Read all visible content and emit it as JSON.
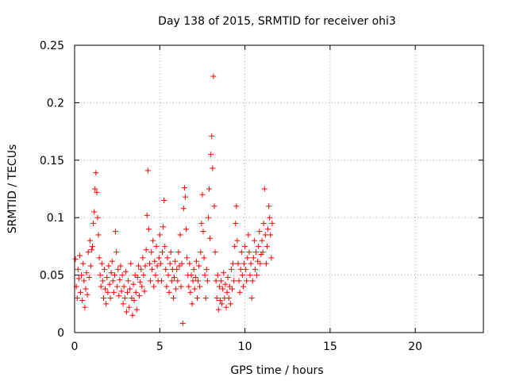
{
  "chart_data": {
    "type": "scatter",
    "title": "Day 138 of 2015, SRMTID for receiver ohi3",
    "xlabel": "GPS time / hours",
    "ylabel": "SRMTID / TECUs",
    "xlim": [
      0,
      24
    ],
    "ylim": [
      0,
      0.25
    ],
    "xticks": [
      0,
      5,
      10,
      15,
      20
    ],
    "xtick_labels": [
      "0",
      "5",
      "10",
      "15",
      "20"
    ],
    "yticks": [
      0,
      0.05,
      0.1,
      0.15,
      0.2,
      0.25
    ],
    "ytick_labels": [
      "0",
      "0.05",
      "0.1",
      "0.15",
      "0.2",
      "0.25"
    ],
    "grid": true,
    "marker": "plus",
    "color": "#ff0000",
    "series": [
      {
        "name": "SRMTID",
        "points": [
          [
            0.05,
            0.064
          ],
          [
            0.1,
            0.04
          ],
          [
            0.15,
            0.03
          ],
          [
            0.2,
            0.055
          ],
          [
            0.25,
            0.047
          ],
          [
            0.3,
            0.067
          ],
          [
            0.35,
            0.035
          ],
          [
            0.4,
            0.05
          ],
          [
            0.45,
            0.028
          ],
          [
            0.5,
            0.06
          ],
          [
            0.55,
            0.045
          ],
          [
            0.6,
            0.022
          ],
          [
            0.65,
            0.038
          ],
          [
            0.7,
            0.052
          ],
          [
            0.75,
            0.033
          ],
          [
            0.8,
            0.07
          ],
          [
            0.85,
            0.048
          ],
          [
            0.9,
            0.08
          ],
          [
            0.95,
            0.058
          ],
          [
            1.0,
            0.072
          ],
          [
            1.05,
            0.075
          ],
          [
            1.1,
            0.095
          ],
          [
            1.15,
            0.105
          ],
          [
            1.2,
            0.125
          ],
          [
            1.25,
            0.139
          ],
          [
            1.3,
            0.122
          ],
          [
            1.35,
            0.1
          ],
          [
            1.4,
            0.085
          ],
          [
            1.45,
            0.065
          ],
          [
            1.5,
            0.05
          ],
          [
            1.55,
            0.04
          ],
          [
            1.6,
            0.06
          ],
          [
            1.65,
            0.045
          ],
          [
            1.7,
            0.03
          ],
          [
            1.75,
            0.055
          ],
          [
            1.8,
            0.038
          ],
          [
            1.85,
            0.025
          ],
          [
            1.9,
            0.048
          ],
          [
            1.95,
            0.035
          ],
          [
            2.0,
            0.058
          ],
          [
            2.05,
            0.042
          ],
          [
            2.1,
            0.03
          ],
          [
            2.15,
            0.052
          ],
          [
            2.2,
            0.062
          ],
          [
            2.25,
            0.045
          ],
          [
            2.3,
            0.035
          ],
          [
            2.35,
            0.05
          ],
          [
            2.4,
            0.088
          ],
          [
            2.45,
            0.07
          ],
          [
            2.5,
            0.04
          ],
          [
            2.55,
            0.055
          ],
          [
            2.6,
            0.032
          ],
          [
            2.65,
            0.046
          ],
          [
            2.7,
            0.058
          ],
          [
            2.75,
            0.036
          ],
          [
            2.8,
            0.05
          ],
          [
            2.85,
            0.025
          ],
          [
            2.9,
            0.04
          ],
          [
            2.95,
            0.03
          ],
          [
            3.0,
            0.053
          ],
          [
            3.05,
            0.018
          ],
          [
            3.1,
            0.035
          ],
          [
            3.15,
            0.045
          ],
          [
            3.2,
            0.022
          ],
          [
            3.25,
            0.038
          ],
          [
            3.3,
            0.06
          ],
          [
            3.35,
            0.03
          ],
          [
            3.4,
            0.015
          ],
          [
            3.45,
            0.042
          ],
          [
            3.5,
            0.028
          ],
          [
            3.55,
            0.05
          ],
          [
            3.6,
            0.035
          ],
          [
            3.65,
            0.02
          ],
          [
            3.7,
            0.048
          ],
          [
            3.75,
            0.058
          ],
          [
            3.8,
            0.032
          ],
          [
            3.85,
            0.044
          ],
          [
            3.9,
            0.055
          ],
          [
            3.95,
            0.04
          ],
          [
            4.0,
            0.065
          ],
          [
            4.05,
            0.05
          ],
          [
            4.1,
            0.036
          ],
          [
            4.15,
            0.058
          ],
          [
            4.2,
            0.072
          ],
          [
            4.25,
            0.102
          ],
          [
            4.3,
            0.141
          ],
          [
            4.35,
            0.09
          ],
          [
            4.4,
            0.06
          ],
          [
            4.45,
            0.045
          ],
          [
            4.5,
            0.07
          ],
          [
            4.55,
            0.055
          ],
          [
            4.6,
            0.08
          ],
          [
            4.65,
            0.04
          ],
          [
            4.7,
            0.062
          ],
          [
            4.75,
            0.05
          ],
          [
            4.8,
            0.075
          ],
          [
            4.85,
            0.058
          ],
          [
            4.9,
            0.045
          ],
          [
            4.95,
            0.065
          ],
          [
            5.0,
            0.085
          ],
          [
            5.05,
            0.06
          ],
          [
            5.1,
            0.045
          ],
          [
            5.15,
            0.07
          ],
          [
            5.2,
            0.092
          ],
          [
            5.25,
            0.115
          ],
          [
            5.3,
            0.075
          ],
          [
            5.35,
            0.055
          ],
          [
            5.4,
            0.04
          ],
          [
            5.45,
            0.065
          ],
          [
            5.5,
            0.05
          ],
          [
            5.55,
            0.035
          ],
          [
            5.6,
            0.06
          ],
          [
            5.65,
            0.07
          ],
          [
            5.7,
            0.045
          ],
          [
            5.75,
            0.055
          ],
          [
            5.8,
            0.03
          ],
          [
            5.85,
            0.048
          ],
          [
            5.9,
            0.062
          ],
          [
            5.95,
            0.038
          ],
          [
            6.0,
            0.055
          ],
          [
            6.05,
            0.045
          ],
          [
            6.1,
            0.07
          ],
          [
            6.15,
            0.058
          ],
          [
            6.2,
            0.085
          ],
          [
            6.25,
            0.04
          ],
          [
            6.3,
            0.06
          ],
          [
            6.35,
            0.008
          ],
          [
            6.4,
            0.108
          ],
          [
            6.45,
            0.126
          ],
          [
            6.5,
            0.118
          ],
          [
            6.55,
            0.09
          ],
          [
            6.6,
            0.065
          ],
          [
            6.65,
            0.05
          ],
          [
            6.7,
            0.04
          ],
          [
            6.75,
            0.06
          ],
          [
            6.8,
            0.035
          ],
          [
            6.85,
            0.05
          ],
          [
            6.9,
            0.025
          ],
          [
            6.95,
            0.045
          ],
          [
            7.0,
            0.055
          ],
          [
            7.05,
            0.038
          ],
          [
            7.1,
            0.048
          ],
          [
            7.15,
            0.062
          ],
          [
            7.2,
            0.03
          ],
          [
            7.25,
            0.045
          ],
          [
            7.3,
            0.058
          ],
          [
            7.35,
            0.04
          ],
          [
            7.4,
            0.07
          ],
          [
            7.45,
            0.095
          ],
          [
            7.5,
            0.12
          ],
          [
            7.55,
            0.088
          ],
          [
            7.6,
            0.065
          ],
          [
            7.65,
            0.05
          ],
          [
            7.7,
            0.03
          ],
          [
            7.75,
            0.055
          ],
          [
            7.8,
            0.045
          ],
          [
            7.85,
            0.1
          ],
          [
            7.9,
            0.125
          ],
          [
            7.95,
            0.082
          ],
          [
            8.0,
            0.155
          ],
          [
            8.05,
            0.171
          ],
          [
            8.1,
            0.143
          ],
          [
            8.15,
            0.223
          ],
          [
            8.2,
            0.11
          ],
          [
            8.25,
            0.07
          ],
          [
            8.3,
            0.045
          ],
          [
            8.35,
            0.03
          ],
          [
            8.4,
            0.05
          ],
          [
            8.45,
            0.02
          ],
          [
            8.5,
            0.04
          ],
          [
            8.55,
            0.028
          ],
          [
            8.6,
            0.045
          ],
          [
            8.65,
            0.025
          ],
          [
            8.7,
            0.038
          ],
          [
            8.75,
            0.052
          ],
          [
            8.8,
            0.03
          ],
          [
            8.85,
            0.042
          ],
          [
            8.9,
            0.022
          ],
          [
            8.95,
            0.035
          ],
          [
            9.0,
            0.048
          ],
          [
            9.05,
            0.03
          ],
          [
            9.1,
            0.04
          ],
          [
            9.15,
            0.025
          ],
          [
            9.2,
            0.055
          ],
          [
            9.25,
            0.038
          ],
          [
            9.3,
            0.06
          ],
          [
            9.35,
            0.045
          ],
          [
            9.4,
            0.075
          ],
          [
            9.45,
            0.095
          ],
          [
            9.5,
            0.11
          ],
          [
            9.55,
            0.08
          ],
          [
            9.6,
            0.06
          ],
          [
            9.65,
            0.045
          ],
          [
            9.7,
            0.035
          ],
          [
            9.75,
            0.055
          ],
          [
            9.8,
            0.07
          ],
          [
            9.85,
            0.05
          ],
          [
            9.9,
            0.04
          ],
          [
            9.95,
            0.06
          ],
          [
            10.0,
            0.075
          ],
          [
            10.05,
            0.055
          ],
          [
            10.1,
            0.045
          ],
          [
            10.15,
            0.065
          ],
          [
            10.2,
            0.085
          ],
          [
            10.25,
            0.07
          ],
          [
            10.3,
            0.05
          ],
          [
            10.35,
            0.06
          ],
          [
            10.4,
            0.03
          ],
          [
            10.45,
            0.045
          ],
          [
            10.5,
            0.065
          ],
          [
            10.55,
            0.08
          ],
          [
            10.6,
            0.055
          ],
          [
            10.65,
            0.07
          ],
          [
            10.7,
            0.05
          ],
          [
            10.75,
            0.062
          ],
          [
            10.8,
            0.075
          ],
          [
            10.85,
            0.088
          ],
          [
            10.9,
            0.06
          ],
          [
            10.95,
            0.068
          ],
          [
            11.0,
            0.08
          ],
          [
            11.05,
            0.07
          ],
          [
            11.1,
            0.095
          ],
          [
            11.15,
            0.125
          ],
          [
            11.2,
            0.085
          ],
          [
            11.25,
            0.06
          ],
          [
            11.3,
            0.075
          ],
          [
            11.35,
            0.09
          ],
          [
            11.4,
            0.11
          ],
          [
            11.45,
            0.1
          ],
          [
            11.5,
            0.085
          ],
          [
            11.55,
            0.065
          ],
          [
            11.6,
            0.095
          ]
        ]
      }
    ]
  }
}
